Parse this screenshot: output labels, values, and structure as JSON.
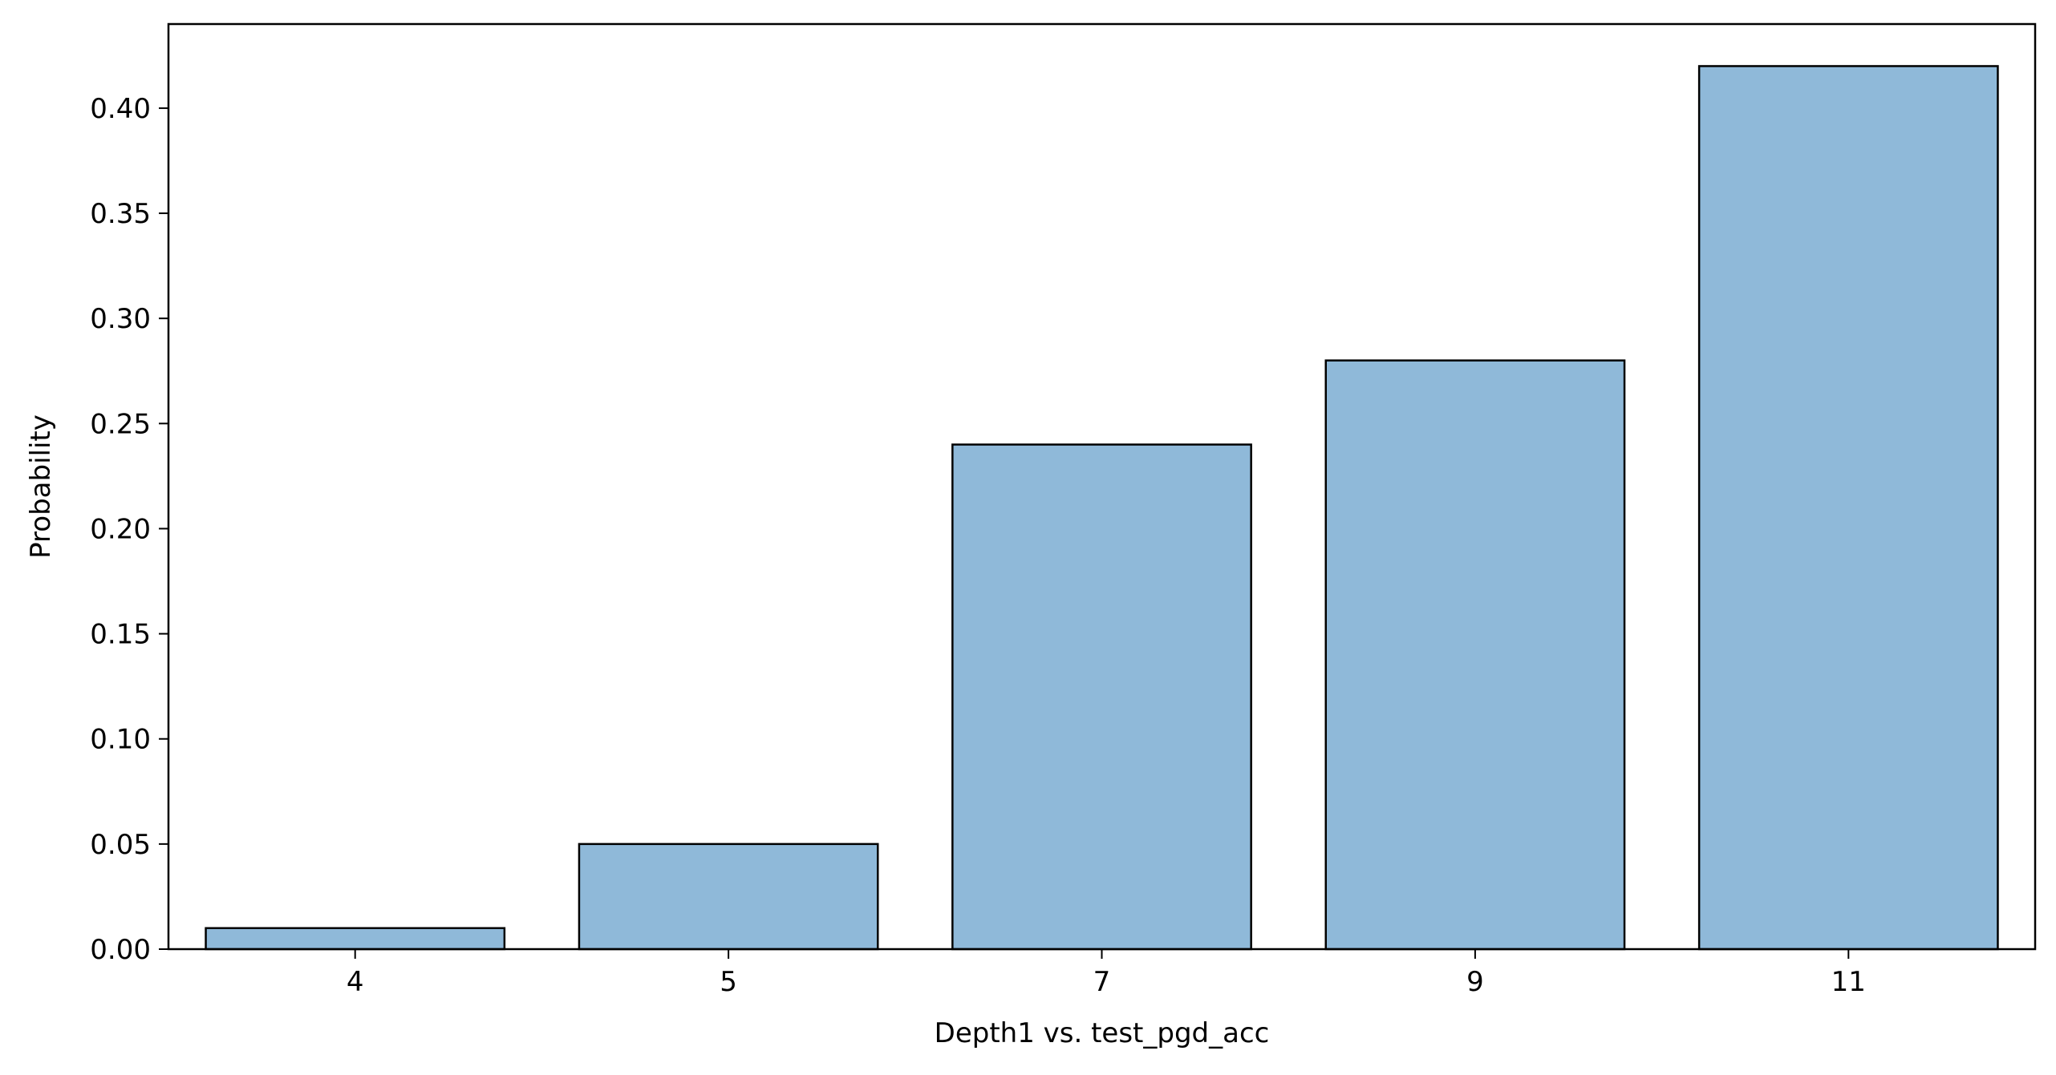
{
  "chart_data": {
    "type": "bar",
    "title": "",
    "xlabel": "Depth1 vs. test_pgd_acc",
    "ylabel": "Probability",
    "categories": [
      "4",
      "5",
      "7",
      "9",
      "11"
    ],
    "values": [
      0.01,
      0.05,
      0.24,
      0.28,
      0.42
    ],
    "ylim": [
      0,
      0.44
    ],
    "yticks": [
      0.0,
      0.05,
      0.1,
      0.15,
      0.2,
      0.25,
      0.3,
      0.35,
      0.4
    ],
    "ytick_labels": [
      "0.00",
      "0.05",
      "0.10",
      "0.15",
      "0.20",
      "0.25",
      "0.30",
      "0.35",
      "0.40"
    ],
    "bar_color": "#8fb9d9",
    "edge_color": "#000000",
    "grid": false,
    "legend": "none"
  }
}
